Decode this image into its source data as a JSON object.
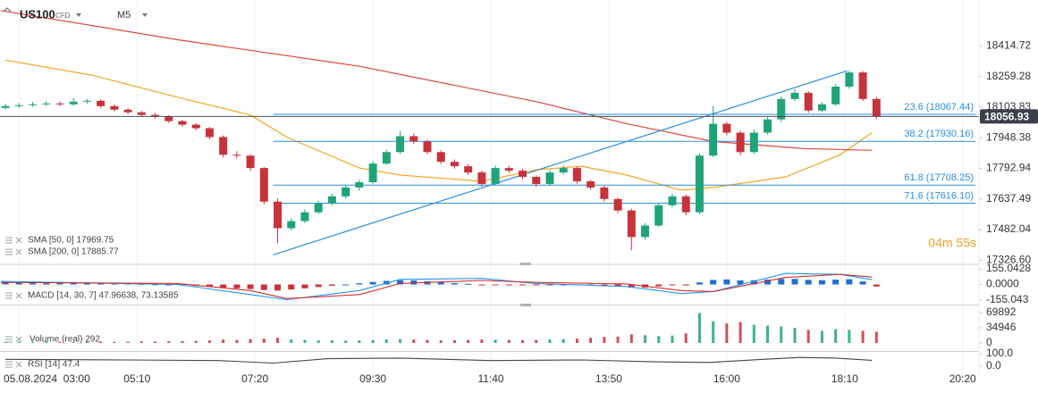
{
  "header": {
    "symbol": "US100",
    "instrument": "CFD",
    "timeframe": "M5"
  },
  "chart_data": [
    {
      "type": "candlestick",
      "up_color": "#1fa37a",
      "down_color": "#c8323a",
      "x": [
        165,
        180,
        195,
        210,
        225,
        240,
        255,
        270,
        285,
        300,
        315,
        330,
        345,
        360,
        375,
        390,
        405,
        420,
        435,
        450,
        465,
        480,
        495,
        510,
        525,
        540,
        555,
        570,
        585,
        600,
        615,
        630,
        645,
        660,
        675,
        690,
        705,
        720,
        735,
        750,
        765,
        780,
        795,
        810,
        825,
        840,
        855,
        870,
        885,
        900,
        915,
        930,
        945,
        960,
        975,
        990,
        1005,
        1020,
        1035,
        1050,
        1065,
        1080,
        1095,
        1110,
        1125
      ],
      "open": [
        18100,
        18109.2,
        18113.7,
        18118.2,
        18122.7,
        18118.2,
        18131.7,
        18136.2,
        18109.2,
        18091.2,
        18077.8,
        18064.3,
        18055.3,
        18032.8,
        18014.9,
        17996.9,
        17952.0,
        17862.1,
        17857.6,
        17794.7,
        17624.0,
        17489.2,
        17525.2,
        17570.1,
        17615.0,
        17651.0,
        17695.9,
        17722.8,
        17817.2,
        17875.6,
        17956.5,
        17929.5,
        17875.6,
        17826.2,
        17803.7,
        17772.3,
        17713.9,
        17794.7,
        17781.2,
        17749.8,
        17713.9,
        17772.3,
        17794.7,
        17727.3,
        17695.9,
        17637.5,
        17579.1,
        17444.3,
        17502.7,
        17606.0,
        17651.0,
        17570.1,
        17857.6,
        18019.4,
        17974.4,
        17875.6,
        17974.4,
        18041.8,
        18145.2,
        18176.6,
        18086.8,
        18118.2,
        18208.1,
        18280.0,
        18145.2
      ],
      "high": [
        18121,
        18125,
        18130,
        18134,
        18133,
        18150,
        18146,
        18144,
        18118,
        18100,
        18085,
        18074,
        18063,
        18040,
        18022,
        18003,
        17960,
        17880,
        17866,
        17800,
        17640,
        17540,
        17585,
        17628,
        17665,
        17708,
        17735,
        17830,
        17888,
        17983,
        17970,
        17938,
        17885,
        17838,
        17815,
        17782,
        17808,
        17805,
        17790,
        17758,
        17785,
        17808,
        17802,
        17735,
        17705,
        17645,
        17588,
        17515,
        17618,
        17665,
        17660,
        17870,
        18109,
        18030,
        17985,
        17990,
        18055,
        18160,
        18195,
        18185,
        18130,
        18220,
        18289,
        18288,
        18155
      ],
      "low": [
        18092,
        18100,
        18105,
        18110,
        18108,
        18110,
        18122,
        18100,
        18082,
        18068,
        18055,
        18045,
        18024,
        18005,
        17985,
        17940,
        17850,
        17845,
        17780,
        17610,
        17413,
        17478,
        17515,
        17560,
        17605,
        17640,
        17680,
        17715,
        17808,
        17866,
        17918,
        17865,
        17815,
        17792,
        17760,
        17700,
        17705,
        17770,
        17738,
        17700,
        17705,
        17762,
        17715,
        17685,
        17625,
        17565,
        17377,
        17430,
        17495,
        17595,
        17555,
        17560,
        17850,
        17960,
        17860,
        17865,
        17965,
        18030,
        18135,
        18075,
        18078,
        18110,
        18198,
        18135,
        18045
      ],
      "close": [
        18109.2,
        18113.7,
        18118.2,
        18122.7,
        18118.2,
        18131.7,
        18136.2,
        18109.2,
        18091.2,
        18077.8,
        18064.3,
        18055.3,
        18032.8,
        18014.9,
        17996.9,
        17952.0,
        17862.1,
        17857.6,
        17794.7,
        17624.0,
        17489.2,
        17525.2,
        17570.1,
        17615.0,
        17651.0,
        17695.9,
        17722.8,
        17817.2,
        17875.6,
        17956.5,
        17929.5,
        17875.6,
        17826.2,
        17803.7,
        17772.3,
        17713.9,
        17794.7,
        17781.2,
        17749.8,
        17713.9,
        17772.3,
        17794.7,
        17727.3,
        17695.9,
        17637.5,
        17579.1,
        17444.3,
        17502.7,
        17606.0,
        17651.0,
        17570.1,
        17857.6,
        18019.4,
        17974.4,
        17875.6,
        17974.4,
        18041.8,
        18145.2,
        18176.6,
        18086.8,
        18118.2,
        18208.1,
        18280.0,
        18145.2,
        18056.93
      ],
      "series": [
        {
          "name": "SMA [50, 0] 17969.75",
          "color": "#f5a623",
          "x": [
            165,
            260,
            355,
            435,
            475,
            555,
            600,
            690,
            750,
            800,
            850,
            910,
            945,
            1025,
            1085,
            1120
          ],
          "values": [
            18342.8,
            18266.5,
            18154.1,
            18064.3,
            17952.0,
            17794.7,
            17758.8,
            17727.3,
            17785.7,
            17803.7,
            17758.8,
            17682.4,
            17695.9,
            17749.8,
            17862.1,
            17974.4
          ]
        },
        {
          "name": "SMA [200, 0] 17885.77",
          "color": "#e0473c",
          "x": [
            160,
            355,
            555,
            750,
            850,
            945,
            1045,
            1120
          ],
          "values": [
            18594.4,
            18446.2,
            18311.4,
            18131.7,
            18019.4,
            17929.5,
            17893.6,
            17884.6
          ]
        }
      ],
      "trendline": {
        "color": "#2a8fe0",
        "x": [
          460,
          1093
        ],
        "values": [
          17354,
          18289
        ]
      },
      "fib_levels": [
        {
          "label": "23.6 (18067.44)",
          "value": 18067.44
        },
        {
          "label": "38.2 (17930.16)",
          "value": 17930.16
        },
        {
          "label": "61.8 (17708.25)",
          "value": 17708.25
        },
        {
          "label": "71.6 (17616.10)",
          "value": 17616.1
        }
      ],
      "countdown": "04m 55s",
      "xlim": [
        159,
        1238
      ],
      "ylim": [
        17310,
        18648
      ],
      "yticks": [
        18414.72,
        18259.28,
        18103.83,
        17948.38,
        17792.94,
        17637.49,
        17482.04,
        {
          "value": 17326.6,
          "label": "17326.60"
        }
      ]
    },
    {
      "type": "macd",
      "title": "MACD [14, 30, 7] 47.96638, 73.13585",
      "histogram": {
        "x_ref": "chart_data.0.x",
        "up_color": "#1e6fd0",
        "down_color": "#c8323a",
        "values": [
          20,
          22,
          24,
          25,
          24,
          24,
          22,
          18,
          14,
          10,
          6,
          2,
          -4,
          -10,
          -15,
          -22,
          -32,
          -38,
          -45,
          -55,
          -60,
          -50,
          -38,
          -25,
          -12,
          0,
          12,
          25,
          35,
          42,
          40,
          32,
          22,
          14,
          6,
          -2,
          -4,
          -5,
          -6,
          -8,
          -4,
          -2,
          -6,
          -10,
          -15,
          -20,
          -32,
          -30,
          -18,
          -8,
          -10,
          20,
          45,
          50,
          40,
          42,
          48,
          55,
          55,
          45,
          42,
          48,
          52,
          30,
          -20
        ]
      },
      "series": [
        {
          "name": "MACD",
          "color": "#2196f3",
          "x": [
            160,
            355,
            435,
            475,
            555,
            600,
            690,
            750,
            850,
            910,
            945,
            1025,
            1085,
            1120
          ],
          "values": [
            30,
            0,
            -100,
            -150,
            -60,
            50,
            60,
            10,
            -20,
            -90,
            -70,
            110,
            100,
            47.96638
          ]
        },
        {
          "name": "Signal",
          "color": "#d32f2f",
          "x": [
            160,
            355,
            435,
            475,
            555,
            600,
            690,
            750,
            850,
            910,
            945,
            1025,
            1085,
            1120
          ],
          "values": [
            20,
            10,
            -60,
            -140,
            -100,
            10,
            40,
            20,
            5,
            -60,
            -70,
            70,
            100,
            73.13585
          ]
        }
      ],
      "xlim": [
        159,
        1238
      ],
      "ylim": [
        -190,
        190
      ],
      "yticks": [
        155.0428,
        {
          "value": 0,
          "label": "0.0000"
        },
        -155.043
      ]
    },
    {
      "type": "volume",
      "title": "Volume  (real)  292",
      "values": [
        2000,
        2500,
        2000,
        3000,
        2500,
        2000,
        2500,
        3000,
        2500,
        3000,
        3500,
        3000,
        4000,
        4500,
        5000,
        6000,
        8000,
        7000,
        9000,
        10000,
        12000,
        8000,
        7000,
        6000,
        6000,
        5500,
        6000,
        7000,
        8000,
        9000,
        8000,
        7000,
        6000,
        6500,
        7000,
        8000,
        7500,
        7000,
        6500,
        7000,
        8000,
        9000,
        10000,
        12000,
        14000,
        15000,
        20000,
        18000,
        16000,
        17000,
        22000,
        69000,
        50000,
        45000,
        48000,
        42000,
        40000,
        38000,
        35000,
        30000,
        28000,
        32000,
        30000,
        28000,
        26000
      ],
      "xlim": [
        159,
        1238
      ],
      "ylim": [
        -16450,
        84280
      ],
      "yticks": [
        69892,
        34946,
        0
      ]
    },
    {
      "type": "rsi",
      "title": "RSI [14]  47.4",
      "color": "#444",
      "x": [
        165,
        300,
        400,
        460,
        520,
        600,
        700,
        800,
        880,
        940,
        1000,
        1040,
        1080,
        1120
      ],
      "values": [
        55,
        50,
        45,
        25,
        60,
        65,
        45,
        50,
        35,
        30,
        55,
        70,
        65,
        47.4
      ],
      "xlim": [
        159,
        1238
      ],
      "ylim": [
        -71,
        107
      ],
      "yticks": [
        {
          "value": 100,
          "label": "100.0"
        },
        {
          "value": 0,
          "label": "0.0"
        }
      ],
      "xticks": [
        {
          "value": 180,
          "label": "05.08.2024  03:00"
        },
        {
          "value": 310,
          "label": "05:10"
        },
        {
          "value": 440,
          "label": "07:20"
        },
        {
          "value": 570,
          "label": "09:30"
        },
        {
          "value": 700,
          "label": "11:40"
        },
        {
          "value": 830,
          "label": "13:50"
        },
        {
          "value": 960,
          "label": "16:00"
        },
        {
          "value": 1090,
          "label": "18:10"
        },
        {
          "value": 1220,
          "label": "20:20"
        }
      ]
    }
  ]
}
